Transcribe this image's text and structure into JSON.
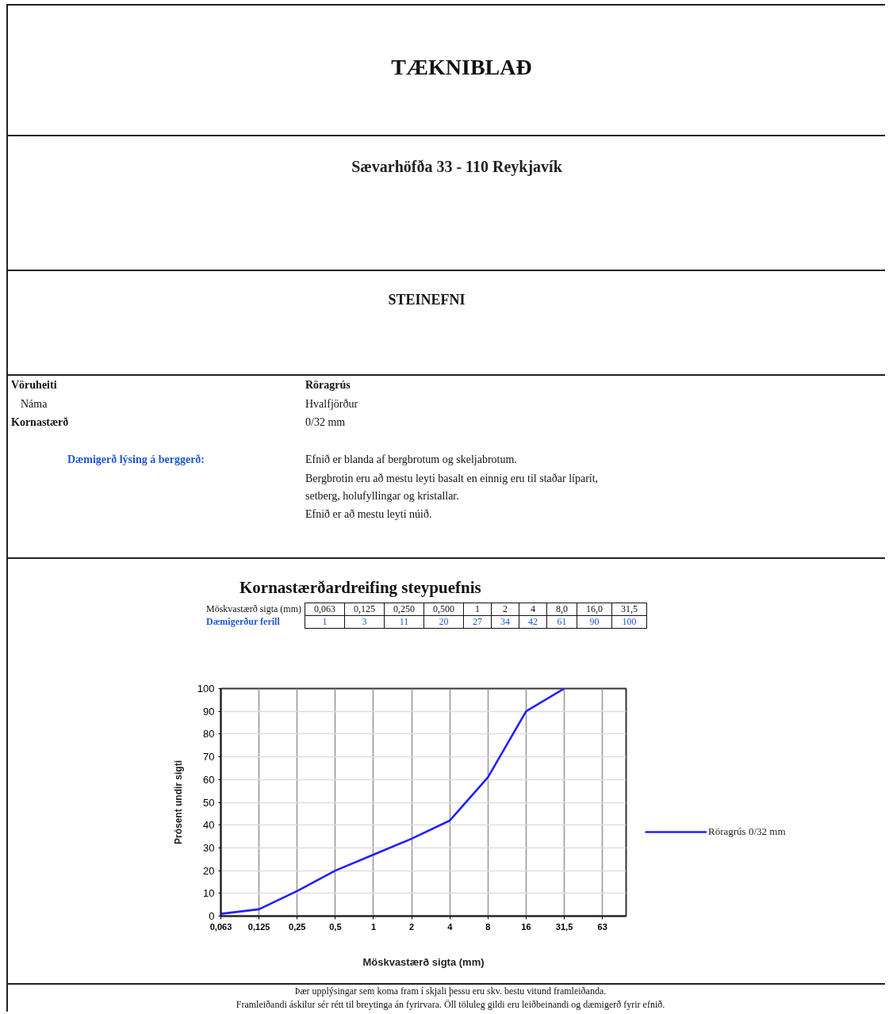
{
  "chart_data": {
    "type": "line",
    "title": "Kornastærðardreifing steypuefnis",
    "xlabel": "Möskvastærð sigta (mm)",
    "ylabel": "Prósent undir sigti",
    "categories": [
      "0,063",
      "0,125",
      "0,25",
      "0,5",
      "1",
      "2",
      "4",
      "8",
      "16",
      "31,5",
      "63"
    ],
    "series": [
      {
        "name": "Röragrús 0/32 mm",
        "color": "#2020ff",
        "values": [
          1,
          3,
          11,
          20,
          27,
          34,
          42,
          61,
          90,
          100,
          null
        ]
      }
    ],
    "ylim": [
      0,
      100
    ],
    "yticks": [
      0,
      10,
      20,
      30,
      40,
      50,
      60,
      70,
      80,
      90,
      100
    ],
    "grid": true,
    "legend": "right",
    "annotations": [
      "TÆKNIBLAÐ",
      "Sævarhöfða 33  -  110 Reykjavík",
      "STEINEFNI",
      "Vöruheiti",
      "Röragrús",
      "Náma",
      "Hvalfjörður",
      "Kornastærð",
      "0/32 mm",
      "Dæmigerð lýsing á berggerð:",
      "Efnið er blanda af bergbrotum og skeljabrotum.",
      "Bergbrotin eru að mestu leyti basalt en einnig eru til staðar líparít,",
      "setberg, holufyllingar og kristallar.",
      "Efnið er að mestu leyti núið.",
      "Dæmigerður ferill",
      "0,063",
      "0,125",
      "0,250",
      "0,500",
      "1",
      "2",
      "4",
      "8,0",
      "16,0",
      "31,5",
      "1",
      "3",
      "11",
      "20",
      "27",
      "34",
      "42",
      "61",
      "90",
      "100",
      "Þær upplýsingar sem koma fram í skjali þessu eru skv. bestu vitund framleiðanda.",
      "Framleiðandi áskilur sér rétt til breytinga án fyrirvara. Öll töluleg gildi eru leiðbeinandi og dæmigerð fyrir efnið."
    ]
  }
}
